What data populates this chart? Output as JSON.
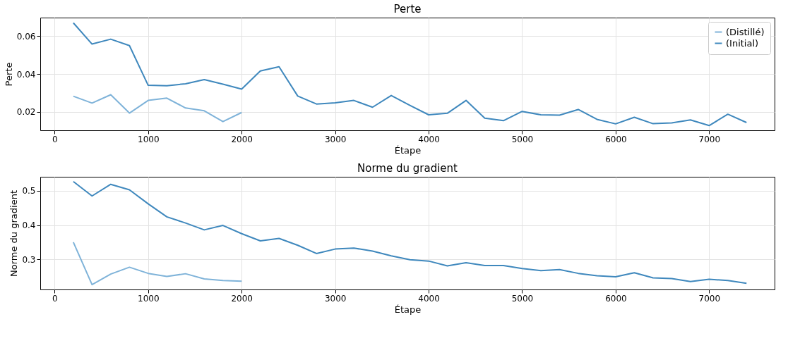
{
  "chart_data": [
    {
      "type": "line",
      "title": "Perte",
      "xlabel": "Étape",
      "ylabel": "Perte",
      "xlim": [
        -154,
        7700
      ],
      "xticks": [
        0,
        1000,
        2000,
        3000,
        4000,
        5000,
        6000,
        7000
      ],
      "ylim": [
        0.0102,
        0.0698
      ],
      "yticks": [
        0.02,
        0.04,
        0.06
      ],
      "grid": true,
      "legend": "top right",
      "series": [
        {
          "name": "(Distillé)",
          "color": "#7fb3d9",
          "x": [
            200,
            400,
            600,
            800,
            1000,
            1200,
            1400,
            1600,
            1800,
            2000
          ],
          "values": [
            0.0282,
            0.0246,
            0.029,
            0.0193,
            0.026,
            0.0272,
            0.022,
            0.0205,
            0.0148,
            0.0196
          ]
        },
        {
          "name": "(Initial)",
          "color": "#3f88bd",
          "x": [
            200,
            400,
            600,
            800,
            1000,
            1200,
            1400,
            1600,
            1800,
            2000,
            2200,
            2400,
            2600,
            2800,
            3000,
            3200,
            3400,
            3600,
            3800,
            4000,
            4200,
            4400,
            4600,
            4800,
            5000,
            5200,
            5400,
            5600,
            5800,
            6000,
            6200,
            6400,
            6600,
            6800,
            7000,
            7200,
            7400
          ],
          "values": [
            0.067,
            0.0558,
            0.0584,
            0.055,
            0.034,
            0.0338,
            0.0348,
            0.037,
            0.0346,
            0.032,
            0.0416,
            0.0438,
            0.0283,
            0.0241,
            0.0247,
            0.026,
            0.0224,
            0.0286,
            0.0234,
            0.0184,
            0.0192,
            0.026,
            0.0166,
            0.0153,
            0.0202,
            0.0184,
            0.0182,
            0.0212,
            0.016,
            0.0136,
            0.0171,
            0.0137,
            0.0141,
            0.0157,
            0.0127,
            0.0187,
            0.0143
          ]
        }
      ]
    },
    {
      "type": "line",
      "title": "Norme du gradient",
      "xlabel": "Étape",
      "ylabel": "Norme du gradient",
      "xlim": [
        -154,
        7700
      ],
      "xticks": [
        0,
        1000,
        2000,
        3000,
        4000,
        5000,
        6000,
        7000
      ],
      "ylim": [
        0.212,
        0.541
      ],
      "yticks": [
        0.3,
        0.4,
        0.5
      ],
      "grid": true,
      "series": [
        {
          "color": "#7fb3d9",
          "x": [
            200,
            400,
            600,
            800,
            1000,
            1200,
            1400,
            1600,
            1800,
            2000
          ],
          "values": [
            0.35,
            0.226,
            0.257,
            0.277,
            0.259,
            0.25,
            0.258,
            0.243,
            0.238,
            0.236
          ]
        },
        {
          "color": "#3f88bd",
          "x": [
            200,
            400,
            600,
            800,
            1000,
            1200,
            1400,
            1600,
            1800,
            2000,
            2200,
            2400,
            2600,
            2800,
            3000,
            3200,
            3400,
            3600,
            3800,
            4000,
            4200,
            4400,
            4600,
            4800,
            5000,
            5200,
            5400,
            5600,
            5800,
            6000,
            6200,
            6400,
            6600,
            6800,
            7000,
            7200,
            7400
          ],
          "values": [
            0.527,
            0.485,
            0.519,
            0.503,
            0.462,
            0.424,
            0.406,
            0.386,
            0.399,
            0.375,
            0.354,
            0.361,
            0.341,
            0.317,
            0.33,
            0.333,
            0.324,
            0.31,
            0.299,
            0.295,
            0.281,
            0.29,
            0.282,
            0.282,
            0.273,
            0.267,
            0.27,
            0.259,
            0.252,
            0.249,
            0.261,
            0.246,
            0.244,
            0.235,
            0.242,
            0.238,
            0.23
          ]
        }
      ]
    }
  ]
}
